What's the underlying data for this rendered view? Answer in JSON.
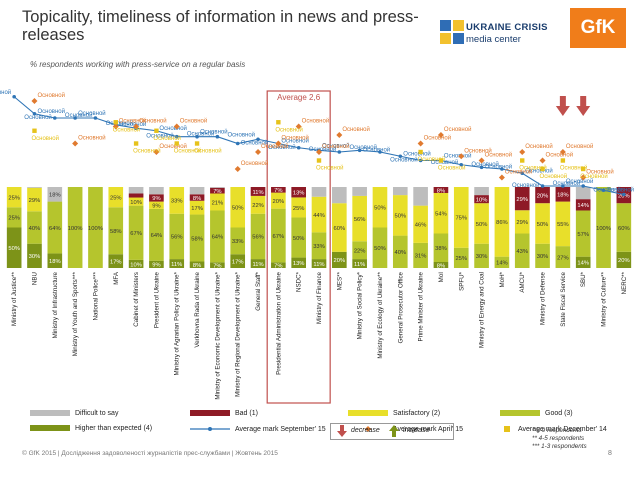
{
  "title": "Topicality, timeliness of information in news and press-releases",
  "subtitle": "% respondents working with press-service on a regular basis",
  "average_label": "Average 2,6",
  "avg_label_text": "Основной",
  "footer": "© GfK 2015 | Дослідження задоволеності журналістів прес-службами | Жовтень 2015",
  "page_number": "8",
  "logos": {
    "ukraine_crisis_line1": "UKRAINE CRISIS",
    "ukraine_crisis_line2": "media center",
    "gfk": "GfK"
  },
  "notes": [
    "* 6-9 respondents",
    "** 4-5 respondents",
    "*** 1-3 respondents"
  ],
  "arrow_legend": {
    "decrease": "decrease",
    "increase": "increase"
  },
  "colors": {
    "difficult": "#bdbdbd",
    "bad": "#8e1a26",
    "satisfactory": "#e8df2a",
    "good": "#b5c52d",
    "higher": "#7d9318",
    "line": "#2f75b6",
    "april": "#e07a2f",
    "dec": "#e6c21a",
    "highlight_border": "#c0504d",
    "arrow": "#c0504d"
  },
  "legend": [
    {
      "label": "Difficult to say",
      "kind": "difficult"
    },
    {
      "label": "Bad (1)",
      "kind": "bad"
    },
    {
      "label": "Satisfactory (2)",
      "kind": "satisfactory"
    },
    {
      "label": "Good (3)",
      "kind": "good"
    },
    {
      "label": "Higher than expected (4)",
      "kind": "higher"
    },
    {
      "label": "Average mark September' 15",
      "kind": "line"
    },
    {
      "label": "Average mark April' 15",
      "kind": "april"
    },
    {
      "label": "Average mark December' 14",
      "kind": "dec"
    }
  ],
  "chart_data": {
    "type": "bar",
    "stacked": true,
    "title": "Topicality, timeliness of information in news and press-releases",
    "average": 2.6,
    "categories": [
      "Ministry of Justice**",
      "NBU",
      "Ministry of Infrastructure",
      "Ministry of Youth and Sports***",
      "National Police***",
      "MFA",
      "Cabinet of Ministers",
      "President of Ukraine",
      "Ministry of Agrarian Policy of Ukraine*",
      "Verkhovna Rada of Ukraine",
      "Ministry of Economic Development of Ukraine*",
      "Ministry of Regional Development of Ukraine*",
      "General Staff*",
      "Presidential Administration of Ukraine",
      "NSDC*",
      "Ministry of Finance",
      "MES**",
      "Ministry of Social Policy*",
      "Ministry of Ecology of Ukraine**",
      "General Prosecutor Office",
      "Prime Minister of Ukraine",
      "MoI",
      "SPFU*",
      "Ministry of Energy and Coal",
      "MoH*",
      "AMCU*",
      "Ministry of Defense",
      "State Fiscal Service",
      "SBU*",
      "Ministry of Culture**",
      "NERC**"
    ],
    "series": [
      {
        "name": "Higher than expected (4)",
        "values": [
          50,
          30,
          18,
          0,
          0,
          17,
          10,
          9,
          11,
          8,
          7,
          17,
          11,
          7,
          13,
          11,
          20,
          11,
          0,
          0,
          0,
          8,
          0,
          0,
          0,
          0,
          0,
          0,
          14,
          0,
          20
        ]
      },
      {
        "name": "Good (3)",
        "values": [
          25,
          40,
          64,
          100,
          100,
          58,
          67,
          64,
          56,
          58,
          64,
          33,
          56,
          67,
          50,
          33,
          0,
          22,
          50,
          40,
          31,
          38,
          25,
          30,
          14,
          43,
          30,
          27,
          57,
          100,
          60
        ]
      },
      {
        "name": "Satisfactory (2)",
        "values": [
          25,
          29,
          0,
          0,
          0,
          25,
          10,
          9,
          33,
          17,
          21,
          50,
          22,
          20,
          25,
          44,
          60,
          56,
          50,
          50,
          46,
          54,
          75,
          50,
          86,
          29,
          50,
          55,
          0,
          0,
          0
        ]
      },
      {
        "name": "Bad (1)",
        "values": [
          0,
          0,
          0,
          0,
          0,
          0,
          5,
          9,
          0,
          8,
          7,
          0,
          11,
          7,
          13,
          0,
          0,
          0,
          0,
          0,
          0,
          8,
          0,
          10,
          0,
          29,
          20,
          18,
          14,
          0,
          20
        ]
      },
      {
        "name": "Difficult to say",
        "values": [
          0,
          1,
          18,
          0,
          0,
          0,
          8,
          9,
          0,
          9,
          1,
          0,
          0,
          0,
          0,
          12,
          20,
          11,
          0,
          10,
          23,
          0,
          0,
          10,
          0,
          0,
          0,
          0,
          15,
          0,
          0
        ]
      }
    ],
    "labels_shown": {
      "higher": [
        "50%",
        "30%",
        "18%",
        "",
        "",
        "17%",
        "10%",
        "9%",
        "11%",
        "8%",
        "7%",
        "17%",
        "11%",
        "7%",
        "13%",
        "11%",
        "20%",
        "11%",
        "",
        "",
        "",
        "8%",
        "",
        "",
        "",
        "",
        "",
        "",
        "14%",
        "",
        "20%"
      ],
      "good": [
        "25%",
        "40%",
        "64%",
        "100%",
        "100%",
        "58%",
        "67%",
        "64%",
        "56%",
        "58%",
        "64%",
        "33%",
        "56%",
        "67%",
        "50%",
        "33%",
        "",
        "22%",
        "50%",
        "40%",
        "31%",
        "38%",
        "25%",
        "30%",
        "14%",
        "43%",
        "30%",
        "27%",
        "57%",
        "100%",
        "60%"
      ],
      "satisfactory": [
        "25%",
        "29%",
        "",
        "",
        "",
        "25%",
        "10%",
        "9%",
        "33%",
        "17%",
        "21%",
        "50%",
        "22%",
        "20%",
        "25%",
        "44%",
        "60%",
        "56%",
        "50%",
        "50%",
        "46%",
        "54%",
        "75%",
        "50%",
        "86%",
        "29%",
        "50%",
        "55%",
        "",
        "",
        ""
      ],
      "bad": [
        "",
        "",
        "",
        "",
        "",
        "",
        "5%",
        "9%",
        "",
        "8%",
        "7%",
        "",
        "11%",
        "7%",
        "13%",
        "",
        "",
        "",
        "",
        "",
        "",
        "8%",
        "",
        "10%",
        "",
        "29%",
        "20%",
        "18%",
        "14%",
        "",
        "20%"
      ],
      "difficult": [
        "",
        "",
        "18%",
        "",
        "",
        "",
        "",
        "",
        "",
        "",
        "",
        "",
        "",
        "",
        "",
        "",
        "",
        "",
        "",
        "",
        "",
        "",
        "",
        "",
        "",
        "",
        "",
        "",
        "",
        "",
        ""
      ]
    },
    "avg_sep15": [
      3.25,
      3.05,
      3.0,
      3.0,
      3.0,
      2.92,
      2.88,
      2.85,
      2.78,
      2.78,
      2.78,
      2.7,
      2.75,
      2.7,
      2.65,
      2.62,
      2.6,
      2.62,
      2.6,
      2.55,
      2.5,
      2.5,
      2.45,
      2.42,
      2.4,
      2.35,
      2.2,
      2.2,
      2.2,
      2.15,
      2.1
    ],
    "avg_apr15": [
      null,
      3.2,
      null,
      2.7,
      null,
      2.9,
      2.9,
      2.6,
      2.9,
      null,
      null,
      2.4,
      2.6,
      2.7,
      2.9,
      2.6,
      2.8,
      null,
      null,
      null,
      2.7,
      2.8,
      2.55,
      2.5,
      2.3,
      2.6,
      2.5,
      2.6,
      2.3,
      null,
      null
    ],
    "avg_dec14": [
      null,
      2.85,
      null,
      null,
      null,
      2.95,
      2.7,
      2.85,
      2.7,
      2.7,
      null,
      null,
      null,
      2.95,
      null,
      2.5,
      null,
      null,
      null,
      null,
      2.6,
      2.5,
      null,
      null,
      null,
      2.5,
      2.4,
      2.5,
      2.4,
      null,
      null
    ],
    "arrows_down": [
      "State Fiscal Service",
      "SBU*"
    ],
    "highlighted": [
      "Presidential Administration of Ukraine",
      "NSDC*",
      "Ministry of Finance"
    ]
  }
}
